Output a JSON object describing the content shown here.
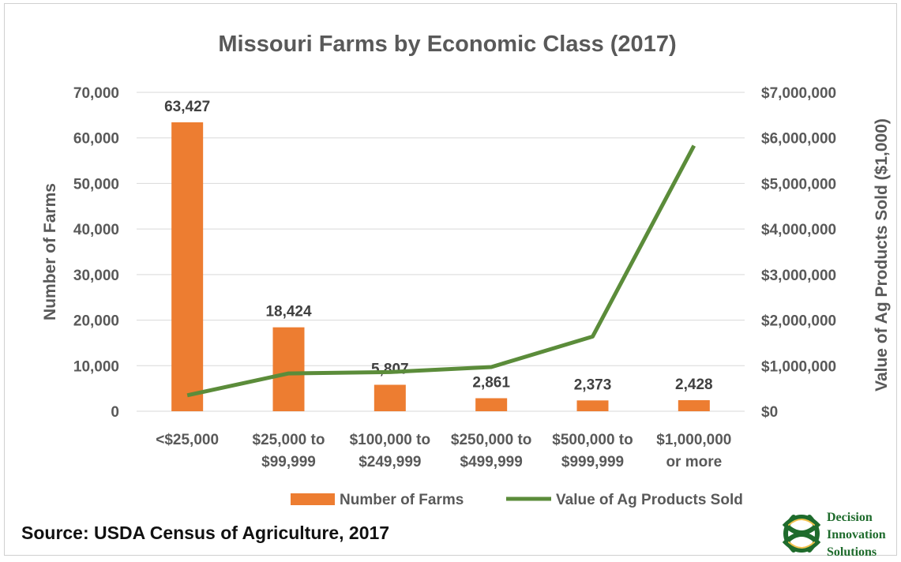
{
  "chart_data": {
    "type": "bar",
    "title": "Missouri Farms by Economic Class (2017)",
    "categories": [
      [
        "<$25,000"
      ],
      [
        "$25,000 to",
        "$99,999"
      ],
      [
        "$100,000 to",
        "$249,999"
      ],
      [
        "$250,000 to",
        "$499,999"
      ],
      [
        "$500,000 to",
        "$999,999"
      ],
      [
        "$1,000,000",
        "or more"
      ]
    ],
    "series": [
      {
        "name": "Number of Farms",
        "type": "bar",
        "axis": "left",
        "color": "#ED7D31",
        "values": [
          63427,
          18424,
          5807,
          2861,
          2373,
          2428
        ],
        "labels": [
          "63,427",
          "18,424",
          "5,807",
          "2,861",
          "2,373",
          "2,428"
        ]
      },
      {
        "name": "Value of Ag Products Sold",
        "type": "line",
        "axis": "right",
        "color": "#5B8C3A",
        "values": [
          350000,
          830000,
          860000,
          970000,
          1640000,
          5830000
        ]
      }
    ],
    "ylabel": "Number of Farms",
    "ylim": [
      0,
      70000
    ],
    "yticks": [
      "0",
      "10,000",
      "20,000",
      "30,000",
      "40,000",
      "50,000",
      "60,000",
      "70,000"
    ],
    "y2label": "Value of Ag Products Sold ($1,000)",
    "y2lim": [
      0,
      7000000
    ],
    "y2ticks": [
      "$0",
      "$1,000,000",
      "$2,000,000",
      "$3,000,000",
      "$4,000,000",
      "$5,000,000",
      "$6,000,000",
      "$7,000,000"
    ],
    "grid": true,
    "legend": "bottom"
  },
  "source": "Source: USDA Census of Agriculture, 2017",
  "logo": {
    "lines": [
      "Decision",
      "Innovation",
      "Solutions"
    ],
    "color": "#1e6b2c"
  }
}
